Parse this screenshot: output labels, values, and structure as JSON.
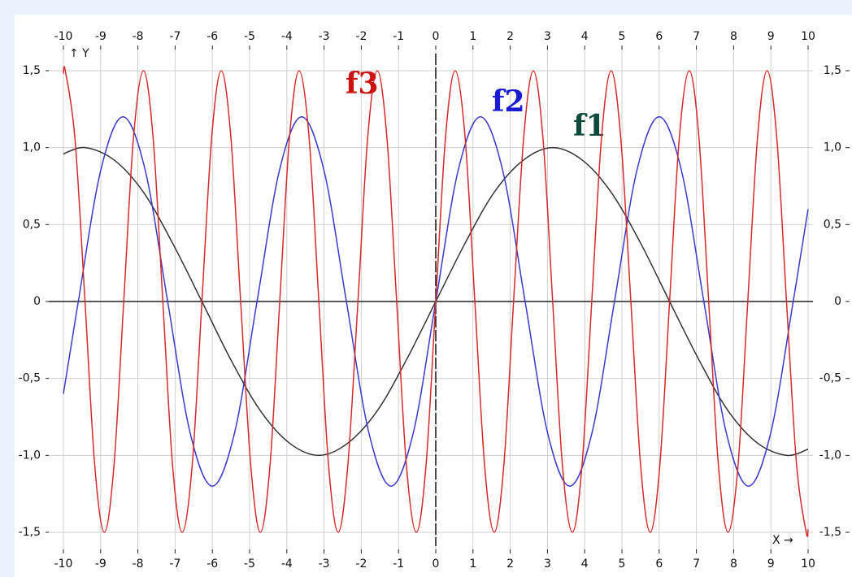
{
  "chart_data": {
    "type": "line",
    "x_label": "X →",
    "y_label": "↑ Y",
    "xlim": [
      -10,
      10
    ],
    "ylim": [
      -1.5,
      1.5
    ],
    "xticks": [
      -10,
      -9,
      -8,
      -7,
      -6,
      -5,
      -4,
      -3,
      -2,
      -1,
      0,
      1,
      2,
      3,
      4,
      5,
      6,
      7,
      8,
      9,
      10
    ],
    "yticks": [
      {
        "value": 1.5,
        "label": "1,5"
      },
      {
        "value": 1.0,
        "label": "1,0"
      },
      {
        "value": 0.5,
        "label": "0,5"
      },
      0,
      {
        "value": -0.5,
        "label": "-0,5"
      },
      {
        "value": -1.0,
        "label": "-1,0"
      },
      {
        "value": -1.5,
        "label": "-1,5"
      }
    ],
    "grid": true,
    "series": [
      {
        "name": "f1",
        "color": "#333333",
        "label_color": "#0d4a3c",
        "x": [
          -10,
          -9.42,
          -8.64,
          -7.85,
          -7.07,
          -6.28,
          -5.5,
          -4.71,
          -3.93,
          -3.14,
          -2.36,
          -1.57,
          -0.79,
          0,
          0.79,
          1.57,
          2.36,
          3.14,
          3.93,
          4.71,
          5.5,
          6.28,
          7.07,
          7.85,
          8.64,
          9.42,
          10
        ],
        "values": [
          0.96,
          1,
          0.92,
          0.71,
          0.38,
          0,
          -0.38,
          -0.71,
          -0.92,
          -1,
          -0.92,
          -0.71,
          -0.38,
          0,
          0.38,
          0.71,
          0.92,
          1,
          0.92,
          0.71,
          0.38,
          0,
          -0.38,
          -0.71,
          -0.92,
          -1,
          -0.96
        ]
      },
      {
        "name": "f2",
        "color": "#3a3acc",
        "label_color": "#1a1ad0",
        "x": [
          -10,
          -9.6,
          -9.0,
          -8.4,
          -7.8,
          -7.2,
          -6.6,
          -6.0,
          -5.4,
          -4.8,
          -4.2,
          -3.6,
          -3.0,
          -2.4,
          -1.8,
          -1.2,
          -0.6,
          0,
          0.6,
          1.2,
          1.8,
          2.4,
          3.0,
          3.6,
          4.2,
          4.8,
          5.4,
          6.0,
          6.6,
          7.2,
          7.8,
          8.4,
          9.0,
          9.6,
          10
        ],
        "values": [
          -0.6,
          0,
          0.85,
          1.2,
          0.85,
          0,
          -0.85,
          -1.2,
          -0.85,
          0,
          0.85,
          1.2,
          0.85,
          0,
          -0.85,
          -1.2,
          -0.85,
          0,
          0.85,
          1.2,
          0.85,
          0,
          -0.85,
          -1.2,
          -0.85,
          0,
          0.85,
          1.2,
          0.85,
          0,
          -0.85,
          -1.2,
          -0.85,
          0,
          0.6
        ]
      },
      {
        "name": "f3",
        "color": "#d42a2a",
        "label_color": "#cc1111",
        "x": [
          -10,
          -9.95,
          -9.69,
          -9.42,
          -9.16,
          -8.9,
          -8.64,
          -8.38,
          -8.12,
          -7.85,
          -7.59,
          -7.33,
          -7.07,
          -6.81,
          -6.54,
          -6.28,
          -6.02,
          -5.76,
          -5.5,
          -5.24,
          -4.97,
          -4.71,
          -4.45,
          -4.19,
          -3.93,
          -3.67,
          -3.4,
          -3.14,
          -2.88,
          -2.62,
          -2.36,
          -2.09,
          -1.83,
          -1.57,
          -1.31,
          -1.05,
          -0.79,
          -0.52,
          -0.26,
          0,
          0.26,
          0.52,
          0.79,
          1.05,
          1.31,
          1.57,
          1.83,
          2.09,
          2.36,
          2.62,
          2.88,
          3.14,
          3.4,
          3.67,
          3.93,
          4.19,
          4.45,
          4.71,
          4.97,
          5.24,
          5.5,
          5.76,
          6.02,
          6.28,
          6.54,
          6.81,
          7.07,
          7.33,
          7.59,
          7.85,
          8.12,
          8.38,
          8.64,
          8.9,
          9.16,
          9.42,
          9.69,
          9.95,
          10
        ],
        "values": [
          1.48,
          1.5,
          1.06,
          0,
          -1.06,
          -1.5,
          -1.06,
          0,
          1.06,
          1.5,
          1.06,
          0,
          -1.06,
          -1.5,
          -1.06,
          0,
          1.06,
          1.5,
          1.06,
          0,
          -1.06,
          -1.5,
          -1.06,
          0,
          1.06,
          1.5,
          1.06,
          0,
          -1.06,
          -1.5,
          -1.06,
          0,
          1.06,
          1.5,
          1.06,
          0,
          -1.06,
          -1.5,
          -1.06,
          0,
          1.06,
          1.5,
          1.06,
          0,
          -1.06,
          -1.5,
          -1.06,
          0,
          1.06,
          1.5,
          1.06,
          0,
          -1.06,
          -1.5,
          -1.06,
          0,
          1.06,
          1.5,
          1.06,
          0,
          -1.06,
          -1.5,
          -1.06,
          0,
          1.06,
          1.5,
          1.06,
          0,
          -1.06,
          -1.5,
          -1.06,
          0,
          1.06,
          1.5,
          1.06,
          0,
          -1.06,
          -1.5,
          -1.48
        ]
      }
    ]
  }
}
